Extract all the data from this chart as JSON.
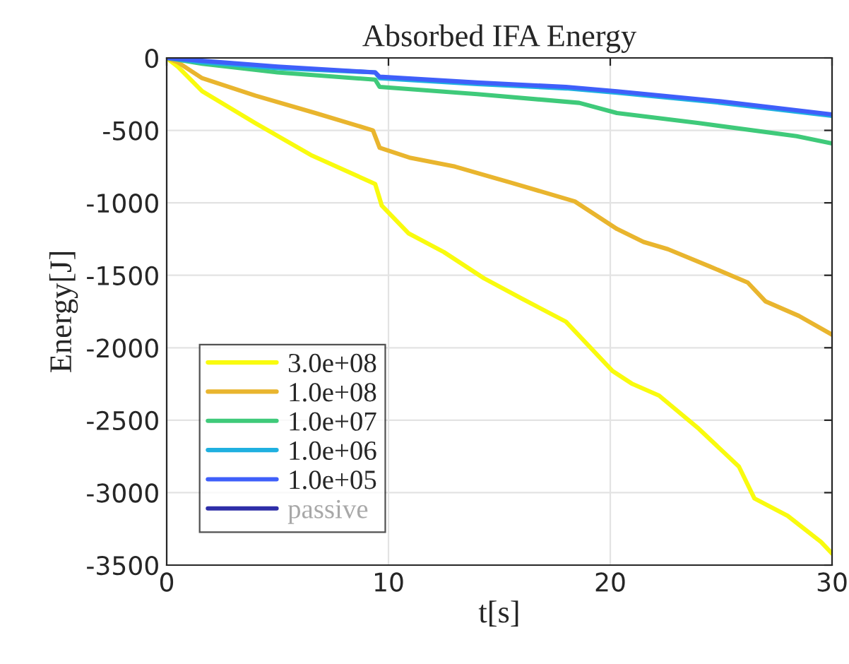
{
  "chart_data": {
    "type": "line",
    "title": "Absorbed IFA Energy",
    "xlabel": "t[s]",
    "ylabel": "Energy[J]",
    "xlim": [
      0,
      30
    ],
    "ylim": [
      -3500,
      0
    ],
    "xticks": [
      0,
      10,
      20,
      30
    ],
    "yticks": [
      -3500,
      -3000,
      -2500,
      -2000,
      -1500,
      -1000,
      -500,
      0
    ],
    "grid": true,
    "legend": "bottom left",
    "series": [
      {
        "name": "3.0e+08",
        "color": "#f9fb0e",
        "x": [
          0,
          0.5,
          1.6,
          4,
          6.5,
          9.4,
          9.7,
          10.9,
          12.5,
          14.3,
          16,
          18,
          20.1,
          21,
          22.2,
          24,
          25.8,
          26.5,
          28,
          29.5,
          30
        ],
        "values": [
          0,
          -60,
          -230,
          -450,
          -670,
          -870,
          -1020,
          -1210,
          -1340,
          -1520,
          -1660,
          -1820,
          -2160,
          -2250,
          -2330,
          -2560,
          -2820,
          -3040,
          -3160,
          -3340,
          -3420
        ]
      },
      {
        "name": "1.0e+08",
        "color": "#e9b52e",
        "x": [
          0,
          0.5,
          1.6,
          4,
          6.7,
          9.3,
          9.6,
          11,
          13,
          15.5,
          18.4,
          20.3,
          21.5,
          22.6,
          24.5,
          26.2,
          27,
          28.5,
          30
        ],
        "values": [
          0,
          -30,
          -140,
          -260,
          -380,
          -500,
          -620,
          -690,
          -750,
          -860,
          -990,
          -1180,
          -1270,
          -1320,
          -1440,
          -1550,
          -1680,
          -1780,
          -1910
        ]
      },
      {
        "name": "1.0e+07",
        "color": "#3fca7a",
        "x": [
          0,
          1.6,
          5,
          9.4,
          9.6,
          14,
          18.6,
          20.3,
          24,
          28.4,
          30
        ],
        "values": [
          0,
          -40,
          -100,
          -150,
          -200,
          -250,
          -310,
          -380,
          -450,
          -540,
          -590
        ]
      },
      {
        "name": "1.0e+06",
        "color": "#1fb0e0",
        "x": [
          0,
          1.6,
          5,
          9.4,
          9.6,
          14,
          18,
          20.3,
          25,
          30
        ],
        "values": [
          0,
          -30,
          -70,
          -100,
          -140,
          -180,
          -210,
          -240,
          -310,
          -400
        ]
      },
      {
        "name": "1.0e+05",
        "color": "#3f5ffa",
        "x": [
          0,
          1.6,
          5,
          9.4,
          9.6,
          14,
          18,
          20.3,
          25,
          30
        ],
        "values": [
          0,
          -20,
          -60,
          -100,
          -130,
          -170,
          -200,
          -230,
          -300,
          -390
        ]
      },
      {
        "name": "passive",
        "color": "#2e2ea8"
      }
    ]
  }
}
